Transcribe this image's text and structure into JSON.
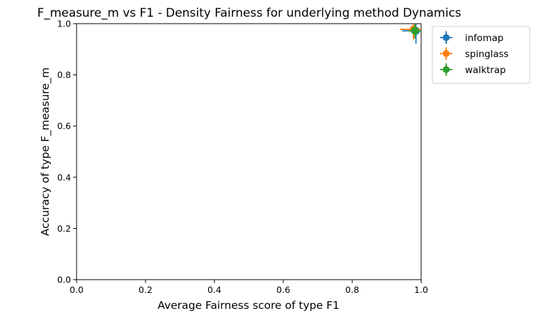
{
  "chart_data": {
    "type": "scatter",
    "title": "F_measure_m vs F1 - Density Fairness for underlying method Dynamics",
    "xlabel": "Average Fairness score of type F1",
    "ylabel": "Accuracy of type F_measure_m",
    "xlim": [
      0.0,
      1.0
    ],
    "ylim": [
      0.0,
      1.0
    ],
    "xticks": [
      "0.0",
      "0.2",
      "0.4",
      "0.6",
      "0.8",
      "1.0"
    ],
    "yticks": [
      "0.0",
      "0.2",
      "0.4",
      "0.6",
      "0.8",
      "1.0"
    ],
    "grid": false,
    "legend_position": "outside-upper-right",
    "series": [
      {
        "name": "infomap",
        "color": "#1f77b4",
        "x": 0.985,
        "y": 0.972,
        "x_err": [
          0.04,
          0.015
        ],
        "y_err": [
          0.05,
          0.028
        ]
      },
      {
        "name": "spinglass",
        "color": "#ff7f0e",
        "x": 0.978,
        "y": 0.978,
        "x_err": [
          0.04,
          0.022
        ],
        "y_err": [
          0.04,
          0.022
        ]
      },
      {
        "name": "walktrap",
        "color": "#2ca02c",
        "x": 0.982,
        "y": 0.972,
        "x_err": [
          0.02,
          0.018
        ],
        "y_err": [
          0.03,
          0.028
        ]
      }
    ]
  }
}
